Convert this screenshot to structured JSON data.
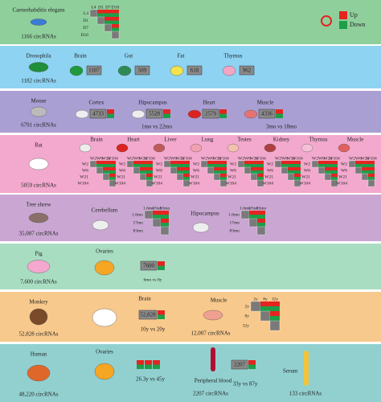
{
  "legend": {
    "up": "Up",
    "down": "Down"
  },
  "rows": [
    {
      "species": "Caenorhabditis elegans",
      "total": "1166 circRNAs",
      "color": "#8fcf9c",
      "timepoints": [
        "L4",
        "D1",
        "D7",
        "D10"
      ]
    },
    {
      "species": "Drosophila",
      "total": "1182 circRNAs",
      "color": "#8ed3f2",
      "tissues": [
        {
          "name": "Brain",
          "value": "1107"
        },
        {
          "name": "Gut",
          "value": "509"
        },
        {
          "name": "Fat",
          "value": "618"
        },
        {
          "name": "Thymus",
          "value": "962"
        }
      ]
    },
    {
      "species": "Mouse",
      "total": "6791 circRNAs",
      "color": "#aa9fd3",
      "tissues": [
        {
          "name": "Cortex",
          "value": "4733"
        },
        {
          "name": "Hipocampus",
          "value": "5528"
        },
        {
          "name": "Heart",
          "value": "2579"
        },
        {
          "name": "Muscle",
          "value": "4336"
        }
      ],
      "comparisons": [
        "1mo vs 22mo",
        "3mo vs 18mo"
      ]
    },
    {
      "species": "Rat",
      "total": "5059 circRNAs",
      "color": "#f2a9cd",
      "tissues": [
        "Brain",
        "Heart",
        "Liver",
        "Lung",
        "Testes",
        "Kidney",
        "Thymus",
        "Muscle"
      ],
      "timepoints": [
        "W2",
        "W6",
        "W21",
        "W104"
      ]
    },
    {
      "species": "Tree shrew",
      "total": "35,007 circRNAs",
      "color": "#c9a7d2",
      "tissues": [
        "Cerebellum",
        "Hipocampus"
      ],
      "timepoints": [
        "1.6mo",
        "17mo",
        "83mo"
      ]
    },
    {
      "species": "Pig",
      "total": "7,600 circRNAs",
      "color": "#a9ddc2",
      "tissues": [
        {
          "name": "Ovaries",
          "value": "7600",
          "comparison": "6mo vs 8y"
        }
      ]
    },
    {
      "species": "Monkey",
      "total": "52,828 circRNAs",
      "color": "#f8c98c",
      "tissues": [
        {
          "name": "Brain",
          "value": "52,828",
          "comparison": "10y vs 20y"
        },
        {
          "name": "Muscle",
          "total": "12,007 circRNAs",
          "timepoints": [
            "2y",
            "8y",
            "32y"
          ]
        }
      ]
    },
    {
      "species": "Human",
      "total": "48,220 circRNAs",
      "color": "#92d0d0",
      "tissues": [
        {
          "name": "Ovaries",
          "comparison": "26.3y vs 45y"
        },
        {
          "name": "Peripheral blood",
          "value": "2207",
          "total": "2207 circRNAs",
          "comparison": "33y vs 87y"
        },
        {
          "name": "Serum",
          "total": "133 circRNAs"
        }
      ]
    }
  ]
}
